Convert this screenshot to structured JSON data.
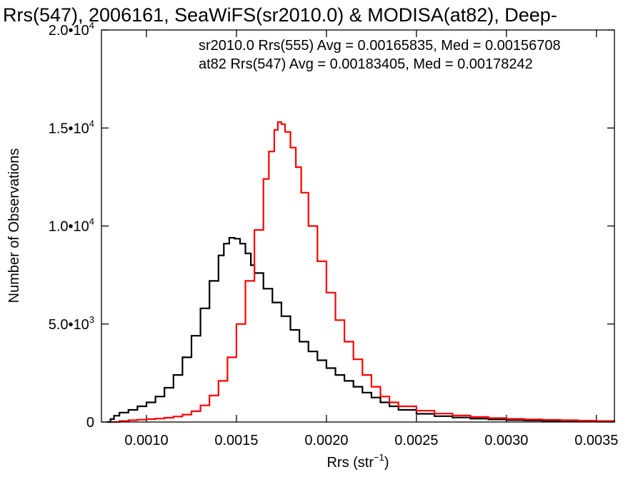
{
  "chart_data": {
    "type": "line",
    "title": "Rrs(547), 2006161, SeaWiFS(sr2010.0) & MODISA(at82), Deep-",
    "xlabel_base": "Rrs (str",
    "xlabel_sup": "−1",
    "xlabel_close": ")",
    "ylabel": "Number of Observations",
    "xlim": [
      0.00075,
      0.0036
    ],
    "ylim": [
      0,
      20000
    ],
    "x_ticks": [
      {
        "value": 0.001,
        "label": "0.0010"
      },
      {
        "value": 0.0015,
        "label": "0.0015"
      },
      {
        "value": 0.002,
        "label": "0.0020"
      },
      {
        "value": 0.0025,
        "label": "0.0025"
      },
      {
        "value": 0.003,
        "label": "0.0030"
      },
      {
        "value": 0.0035,
        "label": "0.0035"
      }
    ],
    "y_ticks": [
      {
        "value": 0,
        "mantissa": "0",
        "exp": ""
      },
      {
        "value": 5000,
        "mantissa": "5.0•10",
        "exp": "3"
      },
      {
        "value": 10000,
        "mantissa": "1.0•10",
        "exp": "4"
      },
      {
        "value": 15000,
        "mantissa": "1.5•10",
        "exp": "4"
      },
      {
        "value": 20000,
        "mantissa": "2.0•10",
        "exp": "4"
      }
    ],
    "grid": false,
    "legend_position": "top-right",
    "series": [
      {
        "name": "sr2010.0 Rrs(555) Avg = 0.00165835, Med = 0.00156708",
        "color": "#000000",
        "points": [
          [
            0.00078,
            0
          ],
          [
            0.0008,
            150
          ],
          [
            0.00082,
            320
          ],
          [
            0.00085,
            480
          ],
          [
            0.0009,
            620
          ],
          [
            0.00095,
            800
          ],
          [
            0.001,
            1000
          ],
          [
            0.00105,
            1300
          ],
          [
            0.0011,
            1750
          ],
          [
            0.00115,
            2400
          ],
          [
            0.0012,
            3300
          ],
          [
            0.00125,
            4400
          ],
          [
            0.0013,
            5800
          ],
          [
            0.00135,
            7200
          ],
          [
            0.0014,
            8500
          ],
          [
            0.00143,
            9100
          ],
          [
            0.00146,
            9400
          ],
          [
            0.00149,
            9350
          ],
          [
            0.00152,
            9100
          ],
          [
            0.00155,
            8600
          ],
          [
            0.00158,
            8000
          ],
          [
            0.0016,
            7600
          ],
          [
            0.00165,
            6800
          ],
          [
            0.0017,
            6100
          ],
          [
            0.00175,
            5400
          ],
          [
            0.0018,
            4700
          ],
          [
            0.00185,
            4100
          ],
          [
            0.0019,
            3600
          ],
          [
            0.00195,
            3150
          ],
          [
            0.002,
            2750
          ],
          [
            0.00205,
            2400
          ],
          [
            0.0021,
            2100
          ],
          [
            0.00215,
            1800
          ],
          [
            0.0022,
            1500
          ],
          [
            0.00225,
            1250
          ],
          [
            0.0023,
            1000
          ],
          [
            0.00235,
            800
          ],
          [
            0.0024,
            620
          ],
          [
            0.0025,
            420
          ],
          [
            0.0026,
            300
          ],
          [
            0.0027,
            230
          ],
          [
            0.0028,
            170
          ],
          [
            0.0029,
            130
          ],
          [
            0.003,
            100
          ],
          [
            0.0031,
            80
          ],
          [
            0.0032,
            60
          ],
          [
            0.0033,
            45
          ],
          [
            0.0034,
            30
          ],
          [
            0.0035,
            20
          ],
          [
            0.0036,
            10
          ]
        ]
      },
      {
        "name": "at82 Rrs(547) Avg = 0.00183405, Med = 0.00178242",
        "color": "#ff0000",
        "points": [
          [
            0.0008,
            0
          ],
          [
            0.00085,
            50
          ],
          [
            0.0009,
            90
          ],
          [
            0.00095,
            120
          ],
          [
            0.001,
            150
          ],
          [
            0.00105,
            180
          ],
          [
            0.0011,
            220
          ],
          [
            0.00115,
            280
          ],
          [
            0.0012,
            380
          ],
          [
            0.00125,
            550
          ],
          [
            0.0013,
            850
          ],
          [
            0.00135,
            1350
          ],
          [
            0.0014,
            2100
          ],
          [
            0.00145,
            3300
          ],
          [
            0.0015,
            5000
          ],
          [
            0.00155,
            7200
          ],
          [
            0.0016,
            9800
          ],
          [
            0.00165,
            12400
          ],
          [
            0.00168,
            13800
          ],
          [
            0.00171,
            14900
          ],
          [
            0.00173,
            15300
          ],
          [
            0.00175,
            15200
          ],
          [
            0.00177,
            14800
          ],
          [
            0.0018,
            14000
          ],
          [
            0.00183,
            13000
          ],
          [
            0.00186,
            11700
          ],
          [
            0.0019,
            10000
          ],
          [
            0.00195,
            8200
          ],
          [
            0.002,
            6600
          ],
          [
            0.00205,
            5200
          ],
          [
            0.0021,
            4100
          ],
          [
            0.00215,
            3200
          ],
          [
            0.0022,
            2400
          ],
          [
            0.00225,
            1800
          ],
          [
            0.0023,
            1300
          ],
          [
            0.00235,
            1000
          ],
          [
            0.0024,
            800
          ],
          [
            0.0025,
            580
          ],
          [
            0.0026,
            430
          ],
          [
            0.0027,
            330
          ],
          [
            0.0028,
            260
          ],
          [
            0.0029,
            200
          ],
          [
            0.003,
            160
          ],
          [
            0.0031,
            130
          ],
          [
            0.0032,
            110
          ],
          [
            0.0033,
            90
          ],
          [
            0.0034,
            70
          ],
          [
            0.0035,
            50
          ],
          [
            0.0036,
            30
          ]
        ]
      }
    ]
  }
}
